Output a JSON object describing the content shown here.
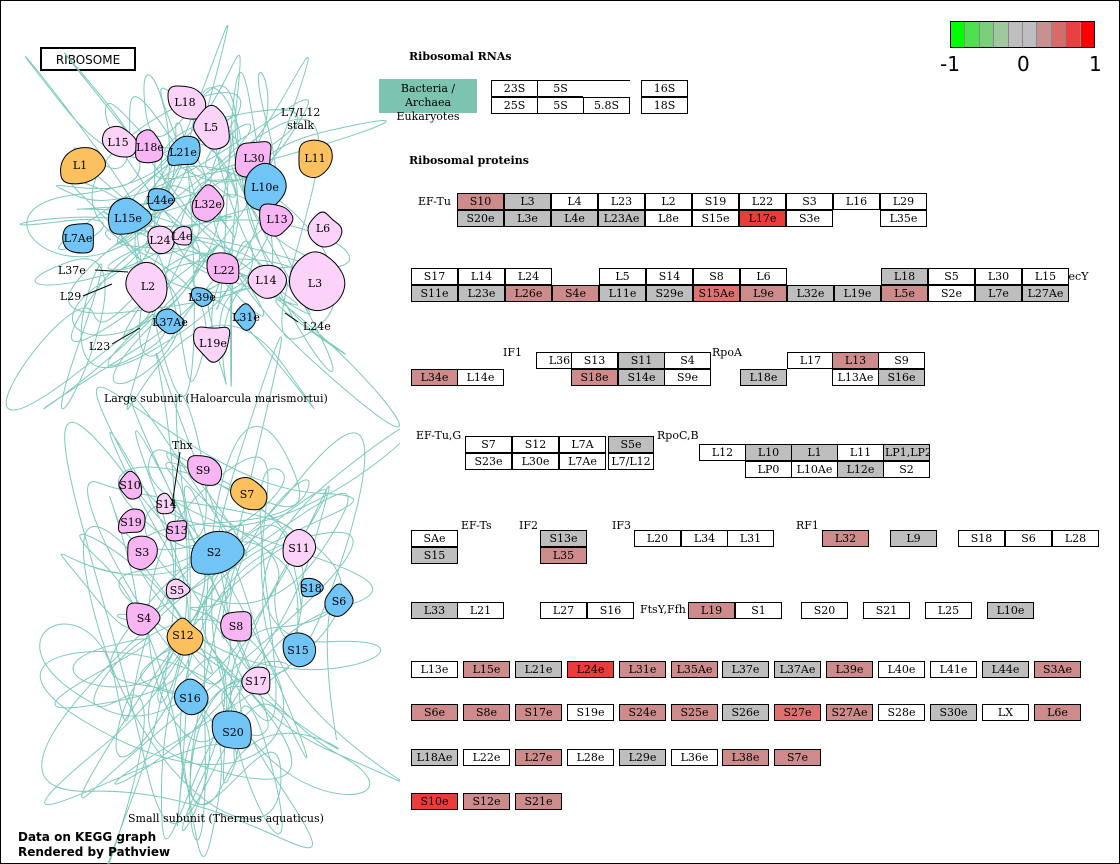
{
  "colors": {
    "gray": "#bebebe",
    "red1": "#ce8b8b",
    "red2": "#df7171",
    "red3": "#ec3b3b",
    "orange": "#fcc15f",
    "blue": "#70c4f6",
    "pink": "#f7b6f3",
    "lightpink": "#fbd2f8",
    "rna_label": "#7dc4b0",
    "thread": "#6fc3b6",
    "legend": [
      "#00ff00",
      "#4fe04f",
      "#78d078",
      "#a0c8a0",
      "#bebebe",
      "#bebebe",
      "#c89090",
      "#d86a6a",
      "#e84040",
      "#ff0000"
    ]
  },
  "legend": {
    "min": "-1",
    "mid": "0",
    "max": "1"
  },
  "footer": {
    "line1": "Data on KEGG graph",
    "line2": "Rendered by Pathview"
  },
  "title_box": "RIBOSOME",
  "large_subunit": {
    "caption": "Large subunit (Haloarcula marismortui)",
    "stalk": "L7/L12\nstalk",
    "proteins": [
      {
        "label": "L18",
        "color": "lightpink"
      },
      {
        "label": "L5",
        "color": "lightpink"
      },
      {
        "label": "L15",
        "color": "lightpink"
      },
      {
        "label": "L18e",
        "color": "pink"
      },
      {
        "label": "L21e",
        "color": "blue"
      },
      {
        "label": "L30",
        "color": "pink"
      },
      {
        "label": "L11",
        "color": "orange"
      },
      {
        "label": "L1",
        "color": "orange"
      },
      {
        "label": "L10e",
        "color": "blue"
      },
      {
        "label": "L44e",
        "color": "blue"
      },
      {
        "label": "L32e",
        "color": "pink"
      },
      {
        "label": "L15e",
        "color": "blue"
      },
      {
        "label": "L13",
        "color": "pink"
      },
      {
        "label": "L6",
        "color": "lightpink"
      },
      {
        "label": "L7Ae",
        "color": "blue"
      },
      {
        "label": "L24",
        "color": "lightpink"
      },
      {
        "label": "L4e",
        "color": "lightpink"
      },
      {
        "label": "L3",
        "color": "lightpink"
      },
      {
        "label": "L22",
        "color": "pink"
      },
      {
        "label": "L14",
        "color": "lightpink"
      },
      {
        "label": "L2",
        "color": "lightpink"
      },
      {
        "label": "L39e",
        "color": "blue"
      },
      {
        "label": "L31e",
        "color": "blue"
      },
      {
        "label": "L37Ae",
        "color": "blue"
      },
      {
        "label": "L19e",
        "color": "lightpink"
      }
    ],
    "callouts": [
      "L37e",
      "L29",
      "L23",
      "L24e"
    ]
  },
  "small_subunit": {
    "caption": "Small subunit (Thermus aquaticus)",
    "thx": "Thx",
    "proteins": [
      {
        "label": "S9",
        "color": "pink"
      },
      {
        "label": "S10",
        "color": "pink"
      },
      {
        "label": "S7",
        "color": "orange"
      },
      {
        "label": "S14",
        "color": "lightpink"
      },
      {
        "label": "S19",
        "color": "pink"
      },
      {
        "label": "S13",
        "color": "pink"
      },
      {
        "label": "S3",
        "color": "pink"
      },
      {
        "label": "S2",
        "color": "blue"
      },
      {
        "label": "S11",
        "color": "lightpink"
      },
      {
        "label": "S18",
        "color": "blue"
      },
      {
        "label": "S6",
        "color": "blue"
      },
      {
        "label": "S5",
        "color": "lightpink"
      },
      {
        "label": "S4",
        "color": "pink"
      },
      {
        "label": "S12",
        "color": "orange"
      },
      {
        "label": "S8",
        "color": "pink"
      },
      {
        "label": "S15",
        "color": "blue"
      },
      {
        "label": "S17",
        "color": "lightpink"
      },
      {
        "label": "S16",
        "color": "blue"
      },
      {
        "label": "S20",
        "color": "blue"
      }
    ]
  },
  "rna": {
    "heading": "Ribosomal RNAs",
    "label_line1": "Bacteria / Archaea",
    "label_line2": "Eukaryotes",
    "boxes": [
      {
        "t": "23S",
        "c": "white"
      },
      {
        "t": "5S",
        "c": "white"
      },
      {
        "t": "",
        "c": "white"
      },
      {
        "t": "16S",
        "c": "white"
      },
      {
        "t": "25S",
        "c": "white"
      },
      {
        "t": "5S",
        "c": "white"
      },
      {
        "t": "5.8S",
        "c": "white"
      },
      {
        "t": "18S",
        "c": "white"
      }
    ]
  },
  "proteins_heading": "Ribosomal proteins",
  "labels": [
    "EF-Tu",
    "SecY",
    "IF1",
    "RpoA",
    "EF-Tu,G",
    "RpoC,B",
    "EF-Ts",
    "IF2",
    "IF3",
    "RF1",
    "FtsY,Ffh"
  ],
  "boxes": [
    {
      "t": "S10",
      "c": "red1"
    },
    {
      "t": "L3",
      "c": "gray"
    },
    {
      "t": "L4",
      "c": "white"
    },
    {
      "t": "L23",
      "c": "white"
    },
    {
      "t": "L2",
      "c": "white"
    },
    {
      "t": "S19",
      "c": "white"
    },
    {
      "t": "L22",
      "c": "white"
    },
    {
      "t": "S3",
      "c": "white"
    },
    {
      "t": "L16",
      "c": "white"
    },
    {
      "t": "L29",
      "c": "white"
    },
    {
      "t": "S20e",
      "c": "gray"
    },
    {
      "t": "L3e",
      "c": "gray"
    },
    {
      "t": "L4e",
      "c": "gray"
    },
    {
      "t": "L23Ae",
      "c": "gray"
    },
    {
      "t": "L8e",
      "c": "white"
    },
    {
      "t": "S15e",
      "c": "white"
    },
    {
      "t": "L17e",
      "c": "red3"
    },
    {
      "t": "S3e",
      "c": "white"
    },
    {
      "t": "L35e",
      "c": "white"
    },
    {
      "t": "S17",
      "c": "white"
    },
    {
      "t": "L14",
      "c": "white"
    },
    {
      "t": "L24",
      "c": "white"
    },
    {
      "t": "L5",
      "c": "white"
    },
    {
      "t": "S14",
      "c": "white"
    },
    {
      "t": "S8",
      "c": "white"
    },
    {
      "t": "L6",
      "c": "white"
    },
    {
      "t": "L18",
      "c": "gray"
    },
    {
      "t": "S5",
      "c": "white"
    },
    {
      "t": "L30",
      "c": "white"
    },
    {
      "t": "L15",
      "c": "white"
    },
    {
      "t": "S11e",
      "c": "gray"
    },
    {
      "t": "L23e",
      "c": "gray"
    },
    {
      "t": "L26e",
      "c": "red1"
    },
    {
      "t": "S4e",
      "c": "red1"
    },
    {
      "t": "L11e",
      "c": "gray"
    },
    {
      "t": "S29e",
      "c": "gray"
    },
    {
      "t": "S15Ae",
      "c": "red2"
    },
    {
      "t": "L9e",
      "c": "red1"
    },
    {
      "t": "L32e",
      "c": "gray"
    },
    {
      "t": "L19e",
      "c": "gray"
    },
    {
      "t": "L5e",
      "c": "red1"
    },
    {
      "t": "S2e",
      "c": "white"
    },
    {
      "t": "L7e",
      "c": "gray"
    },
    {
      "t": "L27Ae",
      "c": "gray"
    },
    {
      "t": "L36",
      "c": "white"
    },
    {
      "t": "S13",
      "c": "white"
    },
    {
      "t": "S11",
      "c": "gray"
    },
    {
      "t": "S4",
      "c": "white"
    },
    {
      "t": "L17",
      "c": "white"
    },
    {
      "t": "L13",
      "c": "red1"
    },
    {
      "t": "S9",
      "c": "white"
    },
    {
      "t": "L34e",
      "c": "red1"
    },
    {
      "t": "L14e",
      "c": "white"
    },
    {
      "t": "S18e",
      "c": "red1"
    },
    {
      "t": "S14e",
      "c": "gray"
    },
    {
      "t": "S9e",
      "c": "white"
    },
    {
      "t": "L18e",
      "c": "gray"
    },
    {
      "t": "L13Ae",
      "c": "white"
    },
    {
      "t": "S16e",
      "c": "gray"
    },
    {
      "t": "S7",
      "c": "white"
    },
    {
      "t": "S12",
      "c": "white"
    },
    {
      "t": "L7A",
      "c": "white"
    },
    {
      "t": "S5e",
      "c": "gray"
    },
    {
      "t": "S23e",
      "c": "white"
    },
    {
      "t": "L30e",
      "c": "white"
    },
    {
      "t": "L7Ae",
      "c": "white"
    },
    {
      "t": "L7/L12",
      "c": "white"
    },
    {
      "t": "L12",
      "c": "white"
    },
    {
      "t": "L10",
      "c": "gray"
    },
    {
      "t": "L1",
      "c": "gray"
    },
    {
      "t": "L11",
      "c": "white"
    },
    {
      "t": "LP1,LP2",
      "c": "gray"
    },
    {
      "t": "LP0",
      "c": "white"
    },
    {
      "t": "L10Ae",
      "c": "white"
    },
    {
      "t": "L12e",
      "c": "gray"
    },
    {
      "t": "S2",
      "c": "white"
    },
    {
      "t": "SAe",
      "c": "white"
    },
    {
      "t": "S15",
      "c": "gray"
    },
    {
      "t": "S13e",
      "c": "gray"
    },
    {
      "t": "L35",
      "c": "red1"
    },
    {
      "t": "L20",
      "c": "white"
    },
    {
      "t": "L34",
      "c": "white"
    },
    {
      "t": "L31",
      "c": "white"
    },
    {
      "t": "L32",
      "c": "red1"
    },
    {
      "t": "L9",
      "c": "gray"
    },
    {
      "t": "S18",
      "c": "white"
    },
    {
      "t": "S6",
      "c": "white"
    },
    {
      "t": "L28",
      "c": "white"
    },
    {
      "t": "L33",
      "c": "gray"
    },
    {
      "t": "L21",
      "c": "white"
    },
    {
      "t": "L27",
      "c": "white"
    },
    {
      "t": "S16",
      "c": "white"
    },
    {
      "t": "L19",
      "c": "red1"
    },
    {
      "t": "S1",
      "c": "white"
    },
    {
      "t": "S20",
      "c": "white"
    },
    {
      "t": "S21",
      "c": "white"
    },
    {
      "t": "L25",
      "c": "white"
    },
    {
      "t": "L10e",
      "c": "gray"
    },
    {
      "t": "L13e",
      "c": "white"
    },
    {
      "t": "L15e",
      "c": "red1"
    },
    {
      "t": "L21e",
      "c": "gray"
    },
    {
      "t": "L24e",
      "c": "red3"
    },
    {
      "t": "L31e",
      "c": "red1"
    },
    {
      "t": "L35Ae",
      "c": "red1"
    },
    {
      "t": "L37e",
      "c": "gray"
    },
    {
      "t": "L37Ae",
      "c": "gray"
    },
    {
      "t": "L39e",
      "c": "red1"
    },
    {
      "t": "L40e",
      "c": "white"
    },
    {
      "t": "L41e",
      "c": "white"
    },
    {
      "t": "L44e",
      "c": "gray"
    },
    {
      "t": "S3Ae",
      "c": "red1"
    },
    {
      "t": "S6e",
      "c": "red1"
    },
    {
      "t": "S8e",
      "c": "red1"
    },
    {
      "t": "S17e",
      "c": "red1"
    },
    {
      "t": "S19e",
      "c": "white"
    },
    {
      "t": "S24e",
      "c": "red1"
    },
    {
      "t": "S25e",
      "c": "red1"
    },
    {
      "t": "S26e",
      "c": "gray"
    },
    {
      "t": "S27e",
      "c": "red2"
    },
    {
      "t": "S27Ae",
      "c": "red1"
    },
    {
      "t": "S28e",
      "c": "white"
    },
    {
      "t": "S30e",
      "c": "gray"
    },
    {
      "t": "LX",
      "c": "white"
    },
    {
      "t": "L6e",
      "c": "red1"
    },
    {
      "t": "L18Ae",
      "c": "gray"
    },
    {
      "t": "L22e",
      "c": "white"
    },
    {
      "t": "L27e",
      "c": "red1"
    },
    {
      "t": "L28e",
      "c": "white"
    },
    {
      "t": "L29e",
      "c": "gray"
    },
    {
      "t": "L36e",
      "c": "white"
    },
    {
      "t": "L38e",
      "c": "red1"
    },
    {
      "t": "S7e",
      "c": "red1"
    },
    {
      "t": "S10e",
      "c": "red3"
    },
    {
      "t": "S12e",
      "c": "red1"
    },
    {
      "t": "S21e",
      "c": "red1"
    }
  ]
}
